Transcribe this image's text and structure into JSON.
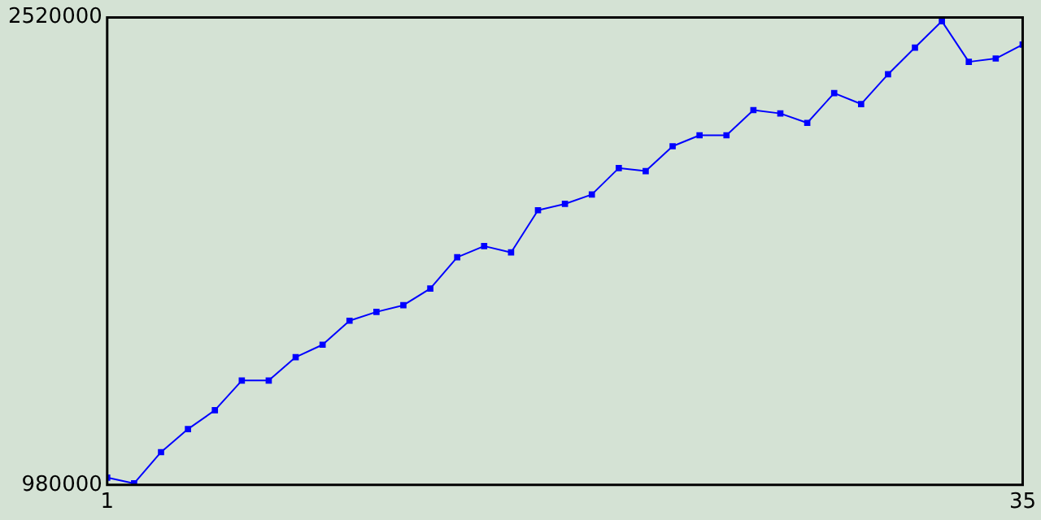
{
  "chart_data": {
    "type": "line",
    "x": [
      1,
      2,
      3,
      4,
      5,
      6,
      7,
      8,
      9,
      10,
      11,
      12,
      13,
      14,
      15,
      16,
      17,
      18,
      19,
      20,
      21,
      22,
      23,
      24,
      25,
      26,
      27,
      28,
      29,
      30,
      31,
      32,
      33,
      34,
      35
    ],
    "series": [
      {
        "color": "#0000ff",
        "values": [
          1004000,
          985000,
          1088000,
          1164000,
          1226000,
          1324000,
          1324000,
          1401000,
          1442000,
          1521000,
          1550000,
          1572000,
          1627000,
          1730000,
          1767000,
          1746000,
          1885000,
          1906000,
          1937000,
          2024000,
          2014000,
          2096000,
          2132000,
          2132000,
          2215000,
          2204000,
          2173000,
          2271000,
          2235000,
          2333000,
          2421000,
          2508000,
          2374000,
          2385000,
          2431000
        ]
      }
    ],
    "xlim": [
      1,
      35
    ],
    "xticks": [
      1,
      35
    ],
    "ylim": [
      980000,
      2520000
    ],
    "yticks": [
      980000,
      2520000
    ],
    "legend": false,
    "marker": "square",
    "line_style": "solid"
  }
}
